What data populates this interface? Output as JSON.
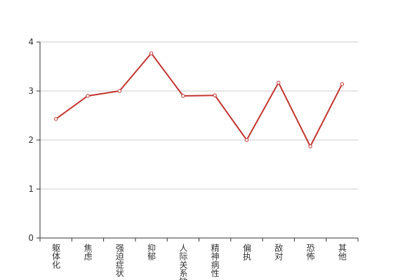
{
  "chart_data": {
    "type": "line",
    "categories": [
      "躯体化",
      "焦虑",
      "强迫症状",
      "抑郁",
      "人际关系敏感",
      "精神病性",
      "偏执",
      "敌对",
      "恐怖",
      "其他"
    ],
    "values": [
      2.43,
      2.9,
      3.0,
      3.77,
      2.9,
      2.91,
      2.0,
      3.17,
      1.87,
      3.14
    ],
    "color": "#c23531",
    "ylim": [
      0,
      4
    ],
    "yticks": [
      0,
      1,
      2,
      3,
      4
    ],
    "grid": true
  }
}
